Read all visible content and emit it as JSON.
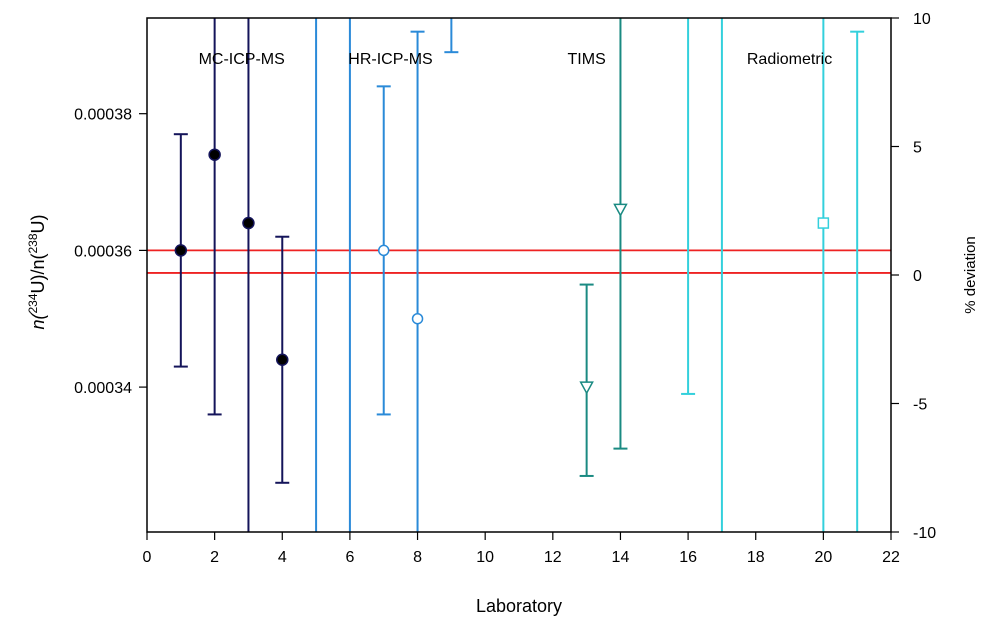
{
  "chart_data": {
    "type": "scatter",
    "xlabel": "Laboratory",
    "ylabel": {
      "pre": "n(",
      "sup1": "234",
      "mid": "U)/n(",
      "sup2": "238",
      "post": "U)"
    },
    "y2label": "% deviation",
    "xlim": [
      0,
      22
    ],
    "ylim": [
      0.0003188,
      0.000394
    ],
    "y2lim": [
      -10,
      10
    ],
    "xticks": [
      0,
      2,
      4,
      6,
      8,
      10,
      12,
      14,
      16,
      18,
      20,
      22
    ],
    "yticks": [
      0.00034,
      0.00036,
      0.00038
    ],
    "ytick_labels": [
      "0.00034",
      "0.00036",
      "0.00038"
    ],
    "y2ticks": [
      -10,
      -5,
      0,
      5,
      10
    ],
    "reference_lines": [
      {
        "y": 0.00036,
        "color": "#ee2222"
      },
      {
        "y": 0.0003567,
        "color": "#ee2222"
      }
    ],
    "group_labels": [
      {
        "text": "MC-ICP-MS",
        "x": 2.8
      },
      {
        "text": "HR-ICP-MS",
        "x": 7.2
      },
      {
        "text": "TIMS",
        "x": 13.0
      },
      {
        "text": "Radiometric",
        "x": 19.0
      }
    ],
    "series": [
      {
        "group": "MC-ICP-MS",
        "color": "#14145a",
        "marker": "circle-filled",
        "points": [
          {
            "x": 1,
            "y": 0.00036,
            "lo": 0.000343,
            "hi": 0.000377
          },
          {
            "x": 2,
            "y": 0.000374,
            "lo": 0.000336,
            "hi": 0.000394
          },
          {
            "x": 3,
            "y": 0.000364,
            "lo": 0.0003188,
            "hi": 0.000394
          },
          {
            "x": 4,
            "y": 0.000344,
            "lo": 0.000326,
            "hi": 0.000362
          }
        ]
      },
      {
        "group": "HR-ICP-MS",
        "color": "#2a8ad8",
        "marker": "circle-open",
        "points": [
          {
            "x": 5,
            "y": null,
            "lo": 0.0003188,
            "hi": 0.000394
          },
          {
            "x": 6,
            "y": null,
            "lo": 0.0003188,
            "hi": 0.000394
          },
          {
            "x": 7,
            "y": 0.00036,
            "lo": 0.000336,
            "hi": 0.000384
          },
          {
            "x": 8,
            "y": 0.00035,
            "lo": 0.0003188,
            "hi": 0.000392
          },
          {
            "x": 9,
            "y": null,
            "lo": 0.000389,
            "hi": 0.000394
          }
        ]
      },
      {
        "group": "TIMS",
        "color": "#1a8a82",
        "marker": "triangle-down-open",
        "points": [
          {
            "x": 13,
            "y": 0.00034,
            "lo": 0.000327,
            "hi": 0.000355
          },
          {
            "x": 14,
            "y": 0.000366,
            "lo": 0.000331,
            "hi": 0.000394
          }
        ]
      },
      {
        "group": "Radiometric",
        "color": "#33d0dc",
        "marker": "square-open",
        "points": [
          {
            "x": 16,
            "y": null,
            "lo": 0.000339,
            "hi": 0.000394
          },
          {
            "x": 17,
            "y": null,
            "lo": 0.0003188,
            "hi": 0.000394
          },
          {
            "x": 20,
            "y": 0.000364,
            "lo": 0.0003188,
            "hi": 0.000394
          },
          {
            "x": 21,
            "y": null,
            "lo": 0.0003188,
            "hi": 0.000392
          }
        ]
      }
    ]
  }
}
